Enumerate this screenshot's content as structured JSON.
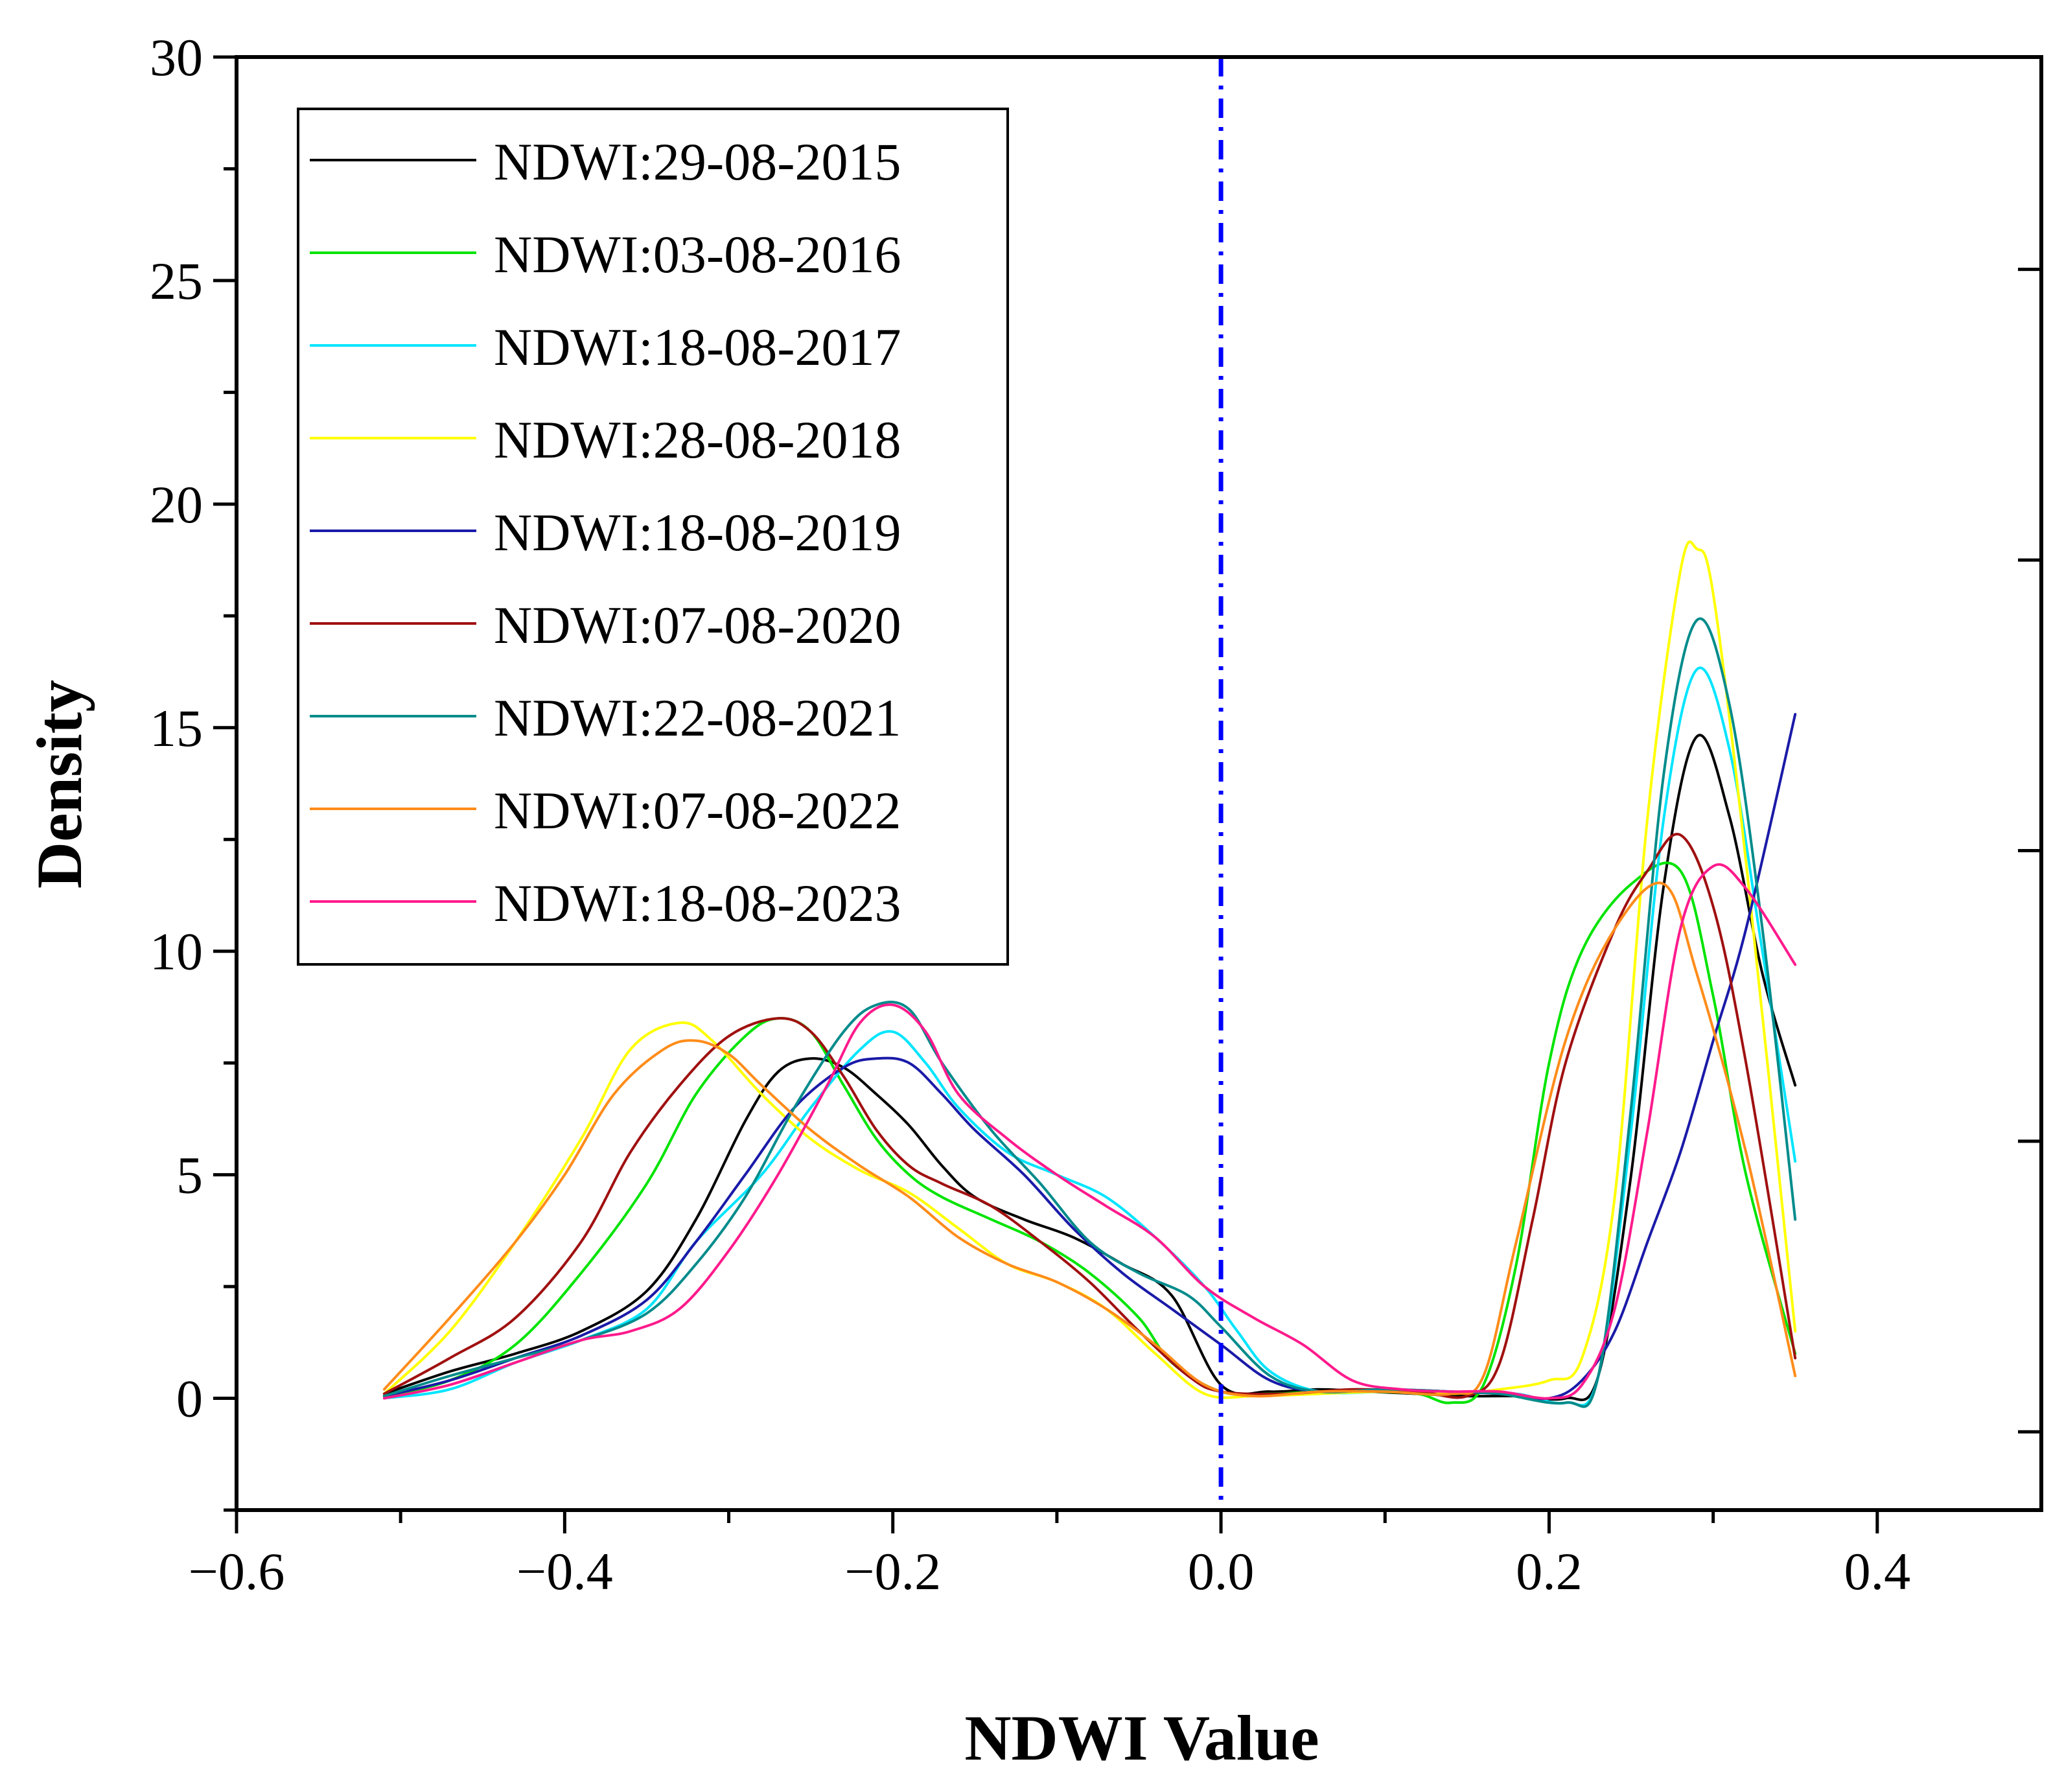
{
  "chart_data": {
    "type": "line",
    "xlabel": "NDWI Value",
    "ylabel": "Density",
    "xlim": [
      -0.6,
      0.5
    ],
    "ylim": [
      -2.5,
      30
    ],
    "x_ticks": [
      -0.6,
      -0.4,
      -0.2,
      0.0,
      0.2,
      0.4
    ],
    "x_tick_labels": [
      "−0.6",
      "−0.4",
      "−0.2",
      "0.0",
      "0.2",
      "0.4"
    ],
    "y_ticks": [
      0,
      5,
      10,
      15,
      20,
      25,
      30
    ],
    "y_tick_labels": [
      "0",
      "5",
      "10",
      "15",
      "20",
      "25",
      "30"
    ],
    "grid": false,
    "legend_position": "top-left",
    "reference_line": {
      "x": 0.0,
      "color": "#0000ff",
      "style": "dash-dot"
    },
    "series": [
      {
        "name": "NDWI:29-08-2015",
        "color": "#000000",
        "points": [
          [
            -0.51,
            0.1
          ],
          [
            -0.47,
            0.6
          ],
          [
            -0.43,
            1.0
          ],
          [
            -0.39,
            1.5
          ],
          [
            -0.35,
            2.4
          ],
          [
            -0.32,
            4.0
          ],
          [
            -0.29,
            6.2
          ],
          [
            -0.27,
            7.3
          ],
          [
            -0.25,
            7.6
          ],
          [
            -0.23,
            7.4
          ],
          [
            -0.21,
            6.8
          ],
          [
            -0.19,
            6.1
          ],
          [
            -0.17,
            5.2
          ],
          [
            -0.15,
            4.5
          ],
          [
            -0.12,
            4.0
          ],
          [
            -0.09,
            3.6
          ],
          [
            -0.06,
            3.0
          ],
          [
            -0.03,
            2.3
          ],
          [
            0.0,
            0.3
          ],
          [
            0.03,
            0.15
          ],
          [
            0.06,
            0.2
          ],
          [
            0.09,
            0.15
          ],
          [
            0.12,
            0.1
          ],
          [
            0.15,
            0.05
          ],
          [
            0.18,
            0.05
          ],
          [
            0.21,
            0.0
          ],
          [
            0.23,
            0.5
          ],
          [
            0.25,
            5.0
          ],
          [
            0.27,
            11.5
          ],
          [
            0.29,
            14.8
          ],
          [
            0.31,
            13.0
          ],
          [
            0.33,
            9.5
          ],
          [
            0.35,
            7.0
          ]
        ]
      },
      {
        "name": "NDWI:03-08-2016",
        "color": "#00e400",
        "points": [
          [
            -0.51,
            0.05
          ],
          [
            -0.47,
            0.4
          ],
          [
            -0.43,
            1.2
          ],
          [
            -0.39,
            2.8
          ],
          [
            -0.35,
            4.8
          ],
          [
            -0.32,
            6.8
          ],
          [
            -0.29,
            8.1
          ],
          [
            -0.27,
            8.5
          ],
          [
            -0.25,
            8.2
          ],
          [
            -0.23,
            7.0
          ],
          [
            -0.21,
            5.8
          ],
          [
            -0.19,
            5.0
          ],
          [
            -0.17,
            4.5
          ],
          [
            -0.14,
            4.0
          ],
          [
            -0.11,
            3.5
          ],
          [
            -0.08,
            2.8
          ],
          [
            -0.05,
            1.8
          ],
          [
            -0.03,
            0.8
          ],
          [
            0.0,
            0.15
          ],
          [
            0.03,
            0.1
          ],
          [
            0.06,
            0.15
          ],
          [
            0.09,
            0.15
          ],
          [
            0.12,
            0.1
          ],
          [
            0.14,
            -0.1
          ],
          [
            0.16,
            0.3
          ],
          [
            0.18,
            3.0
          ],
          [
            0.2,
            7.5
          ],
          [
            0.22,
            10.0
          ],
          [
            0.25,
            11.5
          ],
          [
            0.28,
            11.8
          ],
          [
            0.3,
            9.0
          ],
          [
            0.32,
            5.0
          ],
          [
            0.35,
            1.0
          ]
        ]
      },
      {
        "name": "NDWI:18-08-2017",
        "color": "#00e5ff",
        "points": [
          [
            -0.51,
            0.0
          ],
          [
            -0.47,
            0.2
          ],
          [
            -0.43,
            0.8
          ],
          [
            -0.39,
            1.3
          ],
          [
            -0.35,
            2.0
          ],
          [
            -0.32,
            3.5
          ],
          [
            -0.28,
            5.0
          ],
          [
            -0.25,
            6.5
          ],
          [
            -0.22,
            7.8
          ],
          [
            -0.2,
            8.2
          ],
          [
            -0.18,
            7.5
          ],
          [
            -0.16,
            6.5
          ],
          [
            -0.13,
            5.5
          ],
          [
            -0.1,
            5.0
          ],
          [
            -0.07,
            4.5
          ],
          [
            -0.04,
            3.6
          ],
          [
            -0.01,
            2.5
          ],
          [
            0.01,
            1.5
          ],
          [
            0.03,
            0.6
          ],
          [
            0.06,
            0.15
          ],
          [
            0.1,
            0.15
          ],
          [
            0.14,
            0.15
          ],
          [
            0.18,
            0.1
          ],
          [
            0.21,
            -0.1
          ],
          [
            0.23,
            0.5
          ],
          [
            0.25,
            6.0
          ],
          [
            0.27,
            13.0
          ],
          [
            0.29,
            16.3
          ],
          [
            0.31,
            14.5
          ],
          [
            0.33,
            10.0
          ],
          [
            0.35,
            5.3
          ]
        ]
      },
      {
        "name": "NDWI:28-08-2018",
        "color": "#ffff00",
        "points": [
          [
            -0.51,
            0.1
          ],
          [
            -0.47,
            1.5
          ],
          [
            -0.43,
            3.5
          ],
          [
            -0.39,
            5.8
          ],
          [
            -0.36,
            7.8
          ],
          [
            -0.33,
            8.4
          ],
          [
            -0.31,
            8.0
          ],
          [
            -0.28,
            6.8
          ],
          [
            -0.25,
            5.8
          ],
          [
            -0.22,
            5.1
          ],
          [
            -0.19,
            4.6
          ],
          [
            -0.16,
            3.8
          ],
          [
            -0.13,
            3.0
          ],
          [
            -0.1,
            2.6
          ],
          [
            -0.07,
            2.0
          ],
          [
            -0.04,
            1.0
          ],
          [
            -0.01,
            0.1
          ],
          [
            0.02,
            0.05
          ],
          [
            0.06,
            0.1
          ],
          [
            0.1,
            0.15
          ],
          [
            0.14,
            0.1
          ],
          [
            0.17,
            0.2
          ],
          [
            0.2,
            0.4
          ],
          [
            0.22,
            0.9
          ],
          [
            0.24,
            4.5
          ],
          [
            0.26,
            13.0
          ],
          [
            0.28,
            18.5
          ],
          [
            0.29,
            19.0
          ],
          [
            0.3,
            18.0
          ],
          [
            0.32,
            12.0
          ],
          [
            0.35,
            1.5
          ]
        ]
      },
      {
        "name": "NDWI:18-08-2019",
        "color": "#1a1aa8",
        "points": [
          [
            -0.51,
            0.05
          ],
          [
            -0.47,
            0.4
          ],
          [
            -0.43,
            0.9
          ],
          [
            -0.39,
            1.4
          ],
          [
            -0.35,
            2.2
          ],
          [
            -0.32,
            3.5
          ],
          [
            -0.29,
            5.0
          ],
          [
            -0.26,
            6.5
          ],
          [
            -0.23,
            7.4
          ],
          [
            -0.21,
            7.6
          ],
          [
            -0.19,
            7.5
          ],
          [
            -0.17,
            6.8
          ],
          [
            -0.15,
            6.0
          ],
          [
            -0.12,
            5.0
          ],
          [
            -0.09,
            3.8
          ],
          [
            -0.06,
            2.8
          ],
          [
            -0.03,
            2.0
          ],
          [
            0.0,
            1.2
          ],
          [
            0.03,
            0.4
          ],
          [
            0.06,
            0.15
          ],
          [
            0.1,
            0.2
          ],
          [
            0.14,
            0.15
          ],
          [
            0.17,
            0.1
          ],
          [
            0.2,
            0.0
          ],
          [
            0.22,
            0.4
          ],
          [
            0.24,
            1.5
          ],
          [
            0.26,
            3.5
          ],
          [
            0.28,
            5.5
          ],
          [
            0.3,
            8.0
          ],
          [
            0.32,
            10.5
          ],
          [
            0.35,
            15.3
          ]
        ]
      },
      {
        "name": "NDWI:07-08-2020",
        "color": "#a01010",
        "points": [
          [
            -0.51,
            0.1
          ],
          [
            -0.47,
            0.9
          ],
          [
            -0.43,
            1.8
          ],
          [
            -0.39,
            3.5
          ],
          [
            -0.36,
            5.5
          ],
          [
            -0.33,
            7.0
          ],
          [
            -0.3,
            8.1
          ],
          [
            -0.27,
            8.5
          ],
          [
            -0.25,
            8.2
          ],
          [
            -0.23,
            7.2
          ],
          [
            -0.21,
            6.0
          ],
          [
            -0.19,
            5.2
          ],
          [
            -0.17,
            4.8
          ],
          [
            -0.14,
            4.3
          ],
          [
            -0.11,
            3.5
          ],
          [
            -0.08,
            2.6
          ],
          [
            -0.05,
            1.5
          ],
          [
            -0.02,
            0.5
          ],
          [
            0.0,
            0.15
          ],
          [
            0.04,
            0.1
          ],
          [
            0.08,
            0.2
          ],
          [
            0.12,
            0.15
          ],
          [
            0.15,
            0.05
          ],
          [
            0.17,
            0.8
          ],
          [
            0.19,
            4.0
          ],
          [
            0.21,
            7.5
          ],
          [
            0.24,
            10.5
          ],
          [
            0.26,
            11.8
          ],
          [
            0.28,
            12.6
          ],
          [
            0.3,
            11.0
          ],
          [
            0.32,
            7.5
          ],
          [
            0.35,
            0.9
          ]
        ]
      },
      {
        "name": "NDWI:22-08-2021",
        "color": "#008b8b",
        "points": [
          [
            -0.51,
            0.05
          ],
          [
            -0.47,
            0.5
          ],
          [
            -0.43,
            0.9
          ],
          [
            -0.39,
            1.3
          ],
          [
            -0.35,
            1.9
          ],
          [
            -0.32,
            3.0
          ],
          [
            -0.29,
            4.5
          ],
          [
            -0.26,
            6.5
          ],
          [
            -0.23,
            8.2
          ],
          [
            -0.21,
            8.8
          ],
          [
            -0.19,
            8.7
          ],
          [
            -0.17,
            7.5
          ],
          [
            -0.14,
            6.0
          ],
          [
            -0.11,
            4.8
          ],
          [
            -0.08,
            3.5
          ],
          [
            -0.05,
            2.8
          ],
          [
            -0.02,
            2.3
          ],
          [
            0.0,
            1.6
          ],
          [
            0.03,
            0.5
          ],
          [
            0.06,
            0.15
          ],
          [
            0.1,
            0.2
          ],
          [
            0.14,
            0.15
          ],
          [
            0.17,
            0.1
          ],
          [
            0.21,
            -0.1
          ],
          [
            0.23,
            0.5
          ],
          [
            0.25,
            6.5
          ],
          [
            0.27,
            14.0
          ],
          [
            0.29,
            17.4
          ],
          [
            0.31,
            15.5
          ],
          [
            0.33,
            10.5
          ],
          [
            0.35,
            4.0
          ]
        ]
      },
      {
        "name": "NDWI:07-08-2022",
        "color": "#ff8c1a",
        "points": [
          [
            -0.51,
            0.2
          ],
          [
            -0.47,
            1.8
          ],
          [
            -0.43,
            3.5
          ],
          [
            -0.4,
            5.0
          ],
          [
            -0.37,
            6.8
          ],
          [
            -0.34,
            7.8
          ],
          [
            -0.32,
            8.0
          ],
          [
            -0.3,
            7.7
          ],
          [
            -0.28,
            7.0
          ],
          [
            -0.25,
            6.0
          ],
          [
            -0.22,
            5.2
          ],
          [
            -0.19,
            4.5
          ],
          [
            -0.16,
            3.6
          ],
          [
            -0.13,
            3.0
          ],
          [
            -0.1,
            2.6
          ],
          [
            -0.07,
            2.0
          ],
          [
            -0.04,
            1.2
          ],
          [
            -0.01,
            0.3
          ],
          [
            0.02,
            0.05
          ],
          [
            0.06,
            0.15
          ],
          [
            0.1,
            0.15
          ],
          [
            0.14,
            0.1
          ],
          [
            0.16,
            0.5
          ],
          [
            0.18,
            3.5
          ],
          [
            0.21,
            8.0
          ],
          [
            0.24,
            10.5
          ],
          [
            0.27,
            11.5
          ],
          [
            0.29,
            9.5
          ],
          [
            0.32,
            5.5
          ],
          [
            0.35,
            0.5
          ]
        ]
      },
      {
        "name": "NDWI:18-08-2023",
        "color": "#ff1a8c",
        "points": [
          [
            -0.51,
            0.0
          ],
          [
            -0.47,
            0.3
          ],
          [
            -0.43,
            0.8
          ],
          [
            -0.39,
            1.3
          ],
          [
            -0.36,
            1.5
          ],
          [
            -0.33,
            2.0
          ],
          [
            -0.3,
            3.3
          ],
          [
            -0.27,
            5.0
          ],
          [
            -0.24,
            7.0
          ],
          [
            -0.22,
            8.4
          ],
          [
            -0.2,
            8.8
          ],
          [
            -0.18,
            8.2
          ],
          [
            -0.16,
            6.8
          ],
          [
            -0.13,
            5.8
          ],
          [
            -0.1,
            5.0
          ],
          [
            -0.07,
            4.3
          ],
          [
            -0.04,
            3.6
          ],
          [
            -0.01,
            2.5
          ],
          [
            0.02,
            1.8
          ],
          [
            0.05,
            1.2
          ],
          [
            0.08,
            0.4
          ],
          [
            0.11,
            0.2
          ],
          [
            0.14,
            0.15
          ],
          [
            0.17,
            0.15
          ],
          [
            0.2,
            0.0
          ],
          [
            0.22,
            0.3
          ],
          [
            0.24,
            2.0
          ],
          [
            0.26,
            6.0
          ],
          [
            0.28,
            10.5
          ],
          [
            0.3,
            11.9
          ],
          [
            0.32,
            11.4
          ],
          [
            0.35,
            9.7
          ]
        ]
      }
    ]
  }
}
